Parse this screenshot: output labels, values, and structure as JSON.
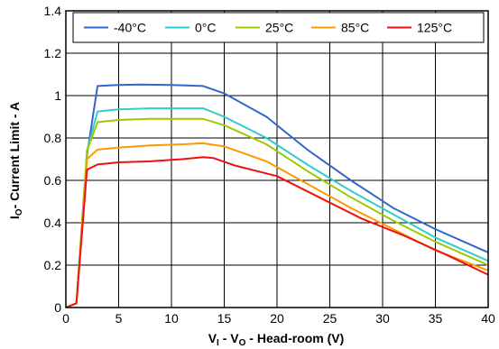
{
  "chart_data": {
    "type": "line",
    "title": "",
    "xlabel": {
      "main": "V",
      "sub1": "I",
      "mid": " - V",
      "sub2": "O",
      "rest": " - Head-room (V)"
    },
    "ylabel": {
      "main": "I",
      "sub": "O",
      "rest": "- Current Limit - A"
    },
    "xlim": [
      0,
      40
    ],
    "ylim": [
      0,
      1.4
    ],
    "xticks": [
      0,
      5,
      10,
      15,
      20,
      25,
      30,
      35,
      40
    ],
    "yticks": [
      0,
      0.2,
      0.4,
      0.6,
      0.8,
      1,
      1.2,
      1.4
    ],
    "xtick_labels": [
      "0",
      "5",
      "10",
      "15",
      "20",
      "25",
      "30",
      "35",
      "40"
    ],
    "ytick_labels": [
      "0",
      "0.2",
      "0.4",
      "0.6",
      "0.8",
      "1",
      "1.2",
      "1.4"
    ],
    "grid": true,
    "legend": "top",
    "series": [
      {
        "name": "-40°C",
        "color": "#3366cc",
        "points": [
          [
            0,
            0
          ],
          [
            1,
            0.02
          ],
          [
            2,
            0.72
          ],
          [
            3,
            1.045
          ],
          [
            5,
            1.05
          ],
          [
            7,
            1.052
          ],
          [
            10,
            1.05
          ],
          [
            13,
            1.045
          ],
          [
            15,
            1.01
          ],
          [
            19,
            0.9
          ],
          [
            23,
            0.74
          ],
          [
            27,
            0.6
          ],
          [
            31,
            0.47
          ],
          [
            35,
            0.37
          ],
          [
            40,
            0.26
          ]
        ]
      },
      {
        "name": "0°C",
        "color": "#33cccc",
        "points": [
          [
            0,
            0
          ],
          [
            1,
            0.02
          ],
          [
            2,
            0.74
          ],
          [
            3,
            0.925
          ],
          [
            5,
            0.935
          ],
          [
            8,
            0.94
          ],
          [
            11,
            0.94
          ],
          [
            13,
            0.94
          ],
          [
            15,
            0.9
          ],
          [
            19,
            0.8
          ],
          [
            23,
            0.67
          ],
          [
            27,
            0.55
          ],
          [
            31,
            0.44
          ],
          [
            35,
            0.33
          ],
          [
            40,
            0.22
          ]
        ]
      },
      {
        "name": "25°C",
        "color": "#99cc00",
        "points": [
          [
            0,
            0
          ],
          [
            1,
            0.02
          ],
          [
            2,
            0.74
          ],
          [
            3,
            0.875
          ],
          [
            5,
            0.885
          ],
          [
            8,
            0.89
          ],
          [
            11,
            0.89
          ],
          [
            13,
            0.89
          ],
          [
            15,
            0.86
          ],
          [
            19,
            0.77
          ],
          [
            23,
            0.64
          ],
          [
            27,
            0.52
          ],
          [
            31,
            0.41
          ],
          [
            35,
            0.31
          ],
          [
            40,
            0.2
          ]
        ]
      },
      {
        "name": "85°C",
        "color": "#ff9900",
        "points": [
          [
            0,
            0
          ],
          [
            1,
            0.02
          ],
          [
            2,
            0.7
          ],
          [
            3,
            0.745
          ],
          [
            5,
            0.755
          ],
          [
            8,
            0.765
          ],
          [
            11,
            0.77
          ],
          [
            13,
            0.775
          ],
          [
            15,
            0.76
          ],
          [
            19,
            0.69
          ],
          [
            23,
            0.58
          ],
          [
            27,
            0.47
          ],
          [
            31,
            0.37
          ],
          [
            35,
            0.27
          ],
          [
            40,
            0.175
          ]
        ]
      },
      {
        "name": "125°C",
        "color": "#ee1111",
        "points": [
          [
            0,
            0
          ],
          [
            1,
            0.02
          ],
          [
            2,
            0.65
          ],
          [
            3,
            0.675
          ],
          [
            5,
            0.685
          ],
          [
            8,
            0.69
          ],
          [
            11,
            0.7
          ],
          [
            13,
            0.71
          ],
          [
            14,
            0.705
          ],
          [
            16,
            0.67
          ],
          [
            20,
            0.62
          ],
          [
            24,
            0.52
          ],
          [
            28,
            0.42
          ],
          [
            32,
            0.34
          ],
          [
            36,
            0.25
          ],
          [
            40,
            0.155
          ]
        ]
      }
    ]
  }
}
